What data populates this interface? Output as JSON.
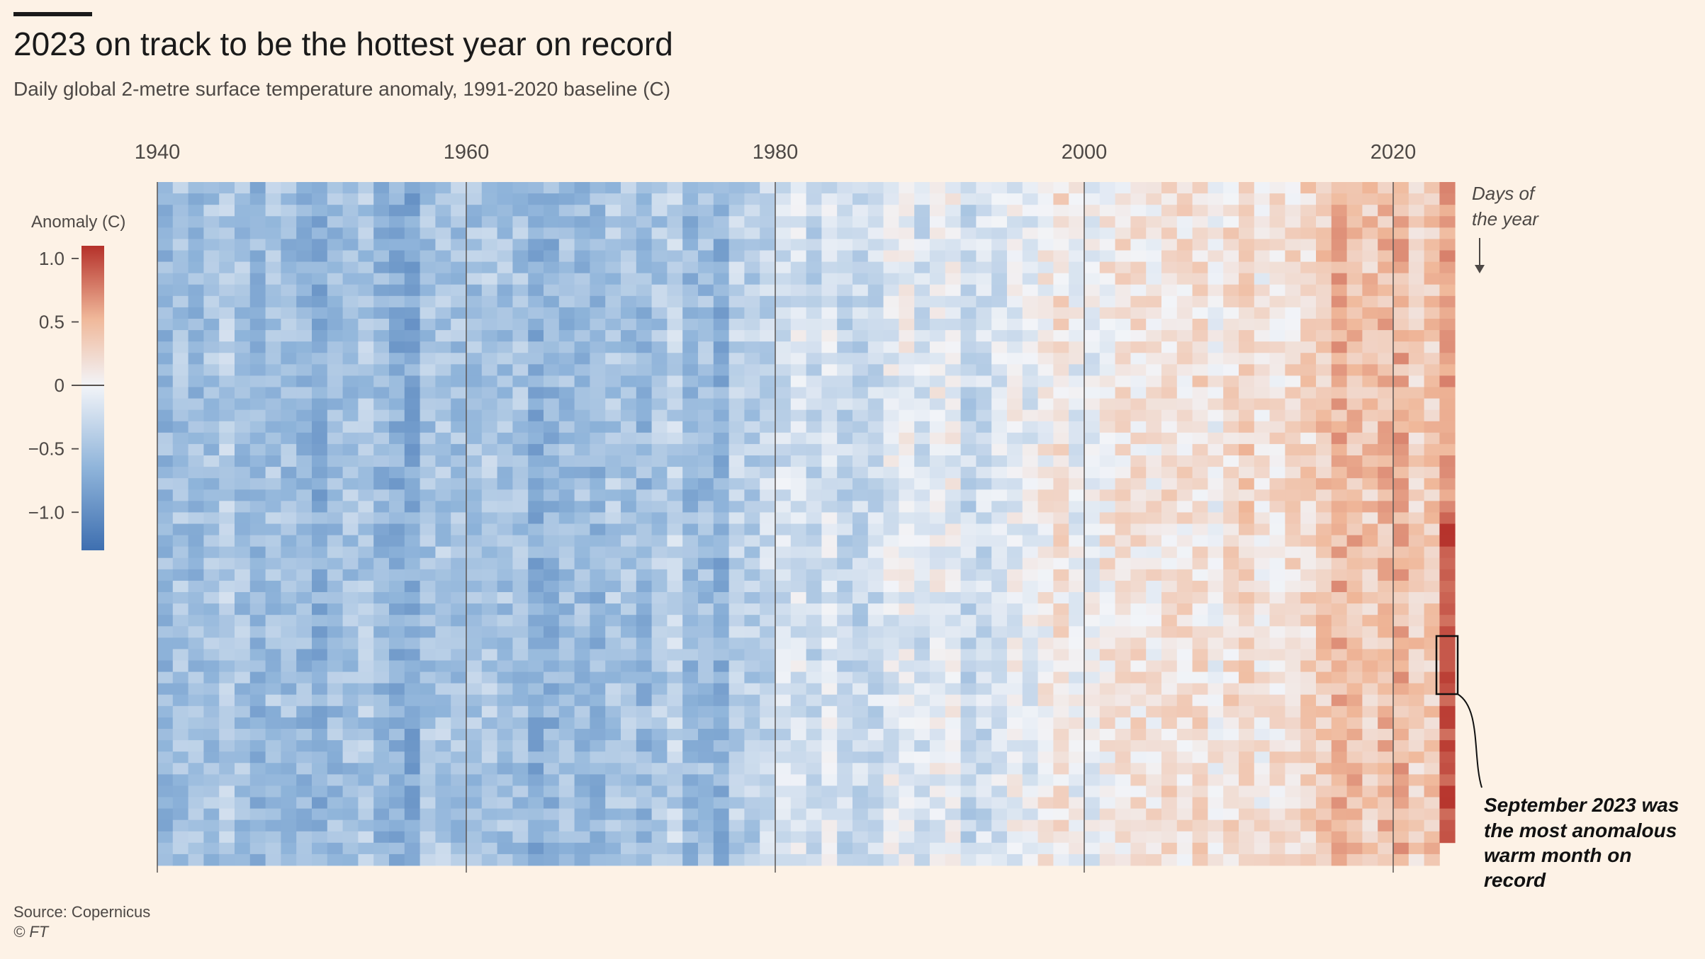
{
  "header": {
    "title": "2023 on track to be the hottest year on record",
    "subtitle": "Daily global 2-metre surface temperature anomaly, 1991-2020 baseline (C)"
  },
  "footer": {
    "source": "Source: Copernicus",
    "copyright": "© FT"
  },
  "chart_data": {
    "type": "heatmap",
    "title": "2023 on track to be the hottest year on record",
    "subtitle": "Daily global 2-metre surface temperature anomaly, 1991-2020 baseline (C)",
    "x_tick_labels": [
      "1940",
      "1960",
      "1980",
      "2000",
      "2020"
    ],
    "x_ticks": [
      1940,
      1960,
      1980,
      2000,
      2020
    ],
    "xlim": [
      1940,
      2023
    ],
    "y_label": "Days of the year",
    "y_label_lines": [
      "Days of",
      "the year"
    ],
    "legend": {
      "title": "Anomaly (C)",
      "tick_labels": [
        "1.0",
        "0.5",
        "0",
        "−0.5",
        "−1.0"
      ],
      "ticks": [
        1.0,
        0.5,
        0,
        -0.5,
        -1.0
      ],
      "range": [
        -1.3,
        1.1
      ],
      "colors": [
        "#3e6fb0",
        "#8fb4da",
        "#f2f4f8",
        "#f0b89a",
        "#b5312a"
      ],
      "position": "left"
    },
    "annotation": {
      "lines": [
        "September 2023 was",
        "the most anomalous",
        "warm month on",
        "record"
      ],
      "year": 2023,
      "month": "September"
    },
    "grid": false,
    "row_bands": 12,
    "yearly_anomaly": [
      {
        "year": 1940,
        "value": -0.6
      },
      {
        "year": 1941,
        "value": -0.5
      },
      {
        "year": 1942,
        "value": -0.55
      },
      {
        "year": 1943,
        "value": -0.5
      },
      {
        "year": 1944,
        "value": -0.4
      },
      {
        "year": 1945,
        "value": -0.5
      },
      {
        "year": 1946,
        "value": -0.6
      },
      {
        "year": 1947,
        "value": -0.5
      },
      {
        "year": 1948,
        "value": -0.55
      },
      {
        "year": 1949,
        "value": -0.6
      },
      {
        "year": 1950,
        "value": -0.7
      },
      {
        "year": 1951,
        "value": -0.55
      },
      {
        "year": 1952,
        "value": -0.5
      },
      {
        "year": 1953,
        "value": -0.45
      },
      {
        "year": 1954,
        "value": -0.6
      },
      {
        "year": 1955,
        "value": -0.7
      },
      {
        "year": 1956,
        "value": -0.75
      },
      {
        "year": 1957,
        "value": -0.5
      },
      {
        "year": 1958,
        "value": -0.45
      },
      {
        "year": 1959,
        "value": -0.5
      },
      {
        "year": 1960,
        "value": -0.5
      },
      {
        "year": 1961,
        "value": -0.45
      },
      {
        "year": 1962,
        "value": -0.5
      },
      {
        "year": 1963,
        "value": -0.5
      },
      {
        "year": 1964,
        "value": -0.7
      },
      {
        "year": 1965,
        "value": -0.65
      },
      {
        "year": 1966,
        "value": -0.55
      },
      {
        "year": 1967,
        "value": -0.55
      },
      {
        "year": 1968,
        "value": -0.6
      },
      {
        "year": 1969,
        "value": -0.45
      },
      {
        "year": 1970,
        "value": -0.5
      },
      {
        "year": 1971,
        "value": -0.6
      },
      {
        "year": 1972,
        "value": -0.45
      },
      {
        "year": 1973,
        "value": -0.35
      },
      {
        "year": 1974,
        "value": -0.6
      },
      {
        "year": 1975,
        "value": -0.55
      },
      {
        "year": 1976,
        "value": -0.7
      },
      {
        "year": 1977,
        "value": -0.35
      },
      {
        "year": 1978,
        "value": -0.4
      },
      {
        "year": 1979,
        "value": -0.3
      },
      {
        "year": 1980,
        "value": -0.2
      },
      {
        "year": 1981,
        "value": -0.15
      },
      {
        "year": 1982,
        "value": -0.3
      },
      {
        "year": 1983,
        "value": -0.15
      },
      {
        "year": 1984,
        "value": -0.3
      },
      {
        "year": 1985,
        "value": -0.3
      },
      {
        "year": 1986,
        "value": -0.25
      },
      {
        "year": 1987,
        "value": -0.1
      },
      {
        "year": 1988,
        "value": -0.05
      },
      {
        "year": 1989,
        "value": -0.2
      },
      {
        "year": 1990,
        "value": -0.05
      },
      {
        "year": 1991,
        "value": -0.05
      },
      {
        "year": 1992,
        "value": -0.3
      },
      {
        "year": 1993,
        "value": -0.25
      },
      {
        "year": 1994,
        "value": -0.15
      },
      {
        "year": 1995,
        "value": -0.05
      },
      {
        "year": 1996,
        "value": -0.1
      },
      {
        "year": 1997,
        "value": 0.05
      },
      {
        "year": 1998,
        "value": 0.15
      },
      {
        "year": 1999,
        "value": -0.05
      },
      {
        "year": 2000,
        "value": -0.05
      },
      {
        "year": 2001,
        "value": 0.1
      },
      {
        "year": 2002,
        "value": 0.15
      },
      {
        "year": 2003,
        "value": 0.15
      },
      {
        "year": 2004,
        "value": 0.1
      },
      {
        "year": 2005,
        "value": 0.2
      },
      {
        "year": 2006,
        "value": 0.15
      },
      {
        "year": 2007,
        "value": 0.2
      },
      {
        "year": 2008,
        "value": 0.05
      },
      {
        "year": 2009,
        "value": 0.2
      },
      {
        "year": 2010,
        "value": 0.3
      },
      {
        "year": 2011,
        "value": 0.1
      },
      {
        "year": 2012,
        "value": 0.15
      },
      {
        "year": 2013,
        "value": 0.2
      },
      {
        "year": 2014,
        "value": 0.25
      },
      {
        "year": 2015,
        "value": 0.35
      },
      {
        "year": 2016,
        "value": 0.5
      },
      {
        "year": 2017,
        "value": 0.45
      },
      {
        "year": 2018,
        "value": 0.35
      },
      {
        "year": 2019,
        "value": 0.45
      },
      {
        "year": 2020,
        "value": 0.5
      },
      {
        "year": 2021,
        "value": 0.3
      },
      {
        "year": 2022,
        "value": 0.35
      },
      {
        "year": 2023,
        "value": 0.6
      }
    ]
  }
}
